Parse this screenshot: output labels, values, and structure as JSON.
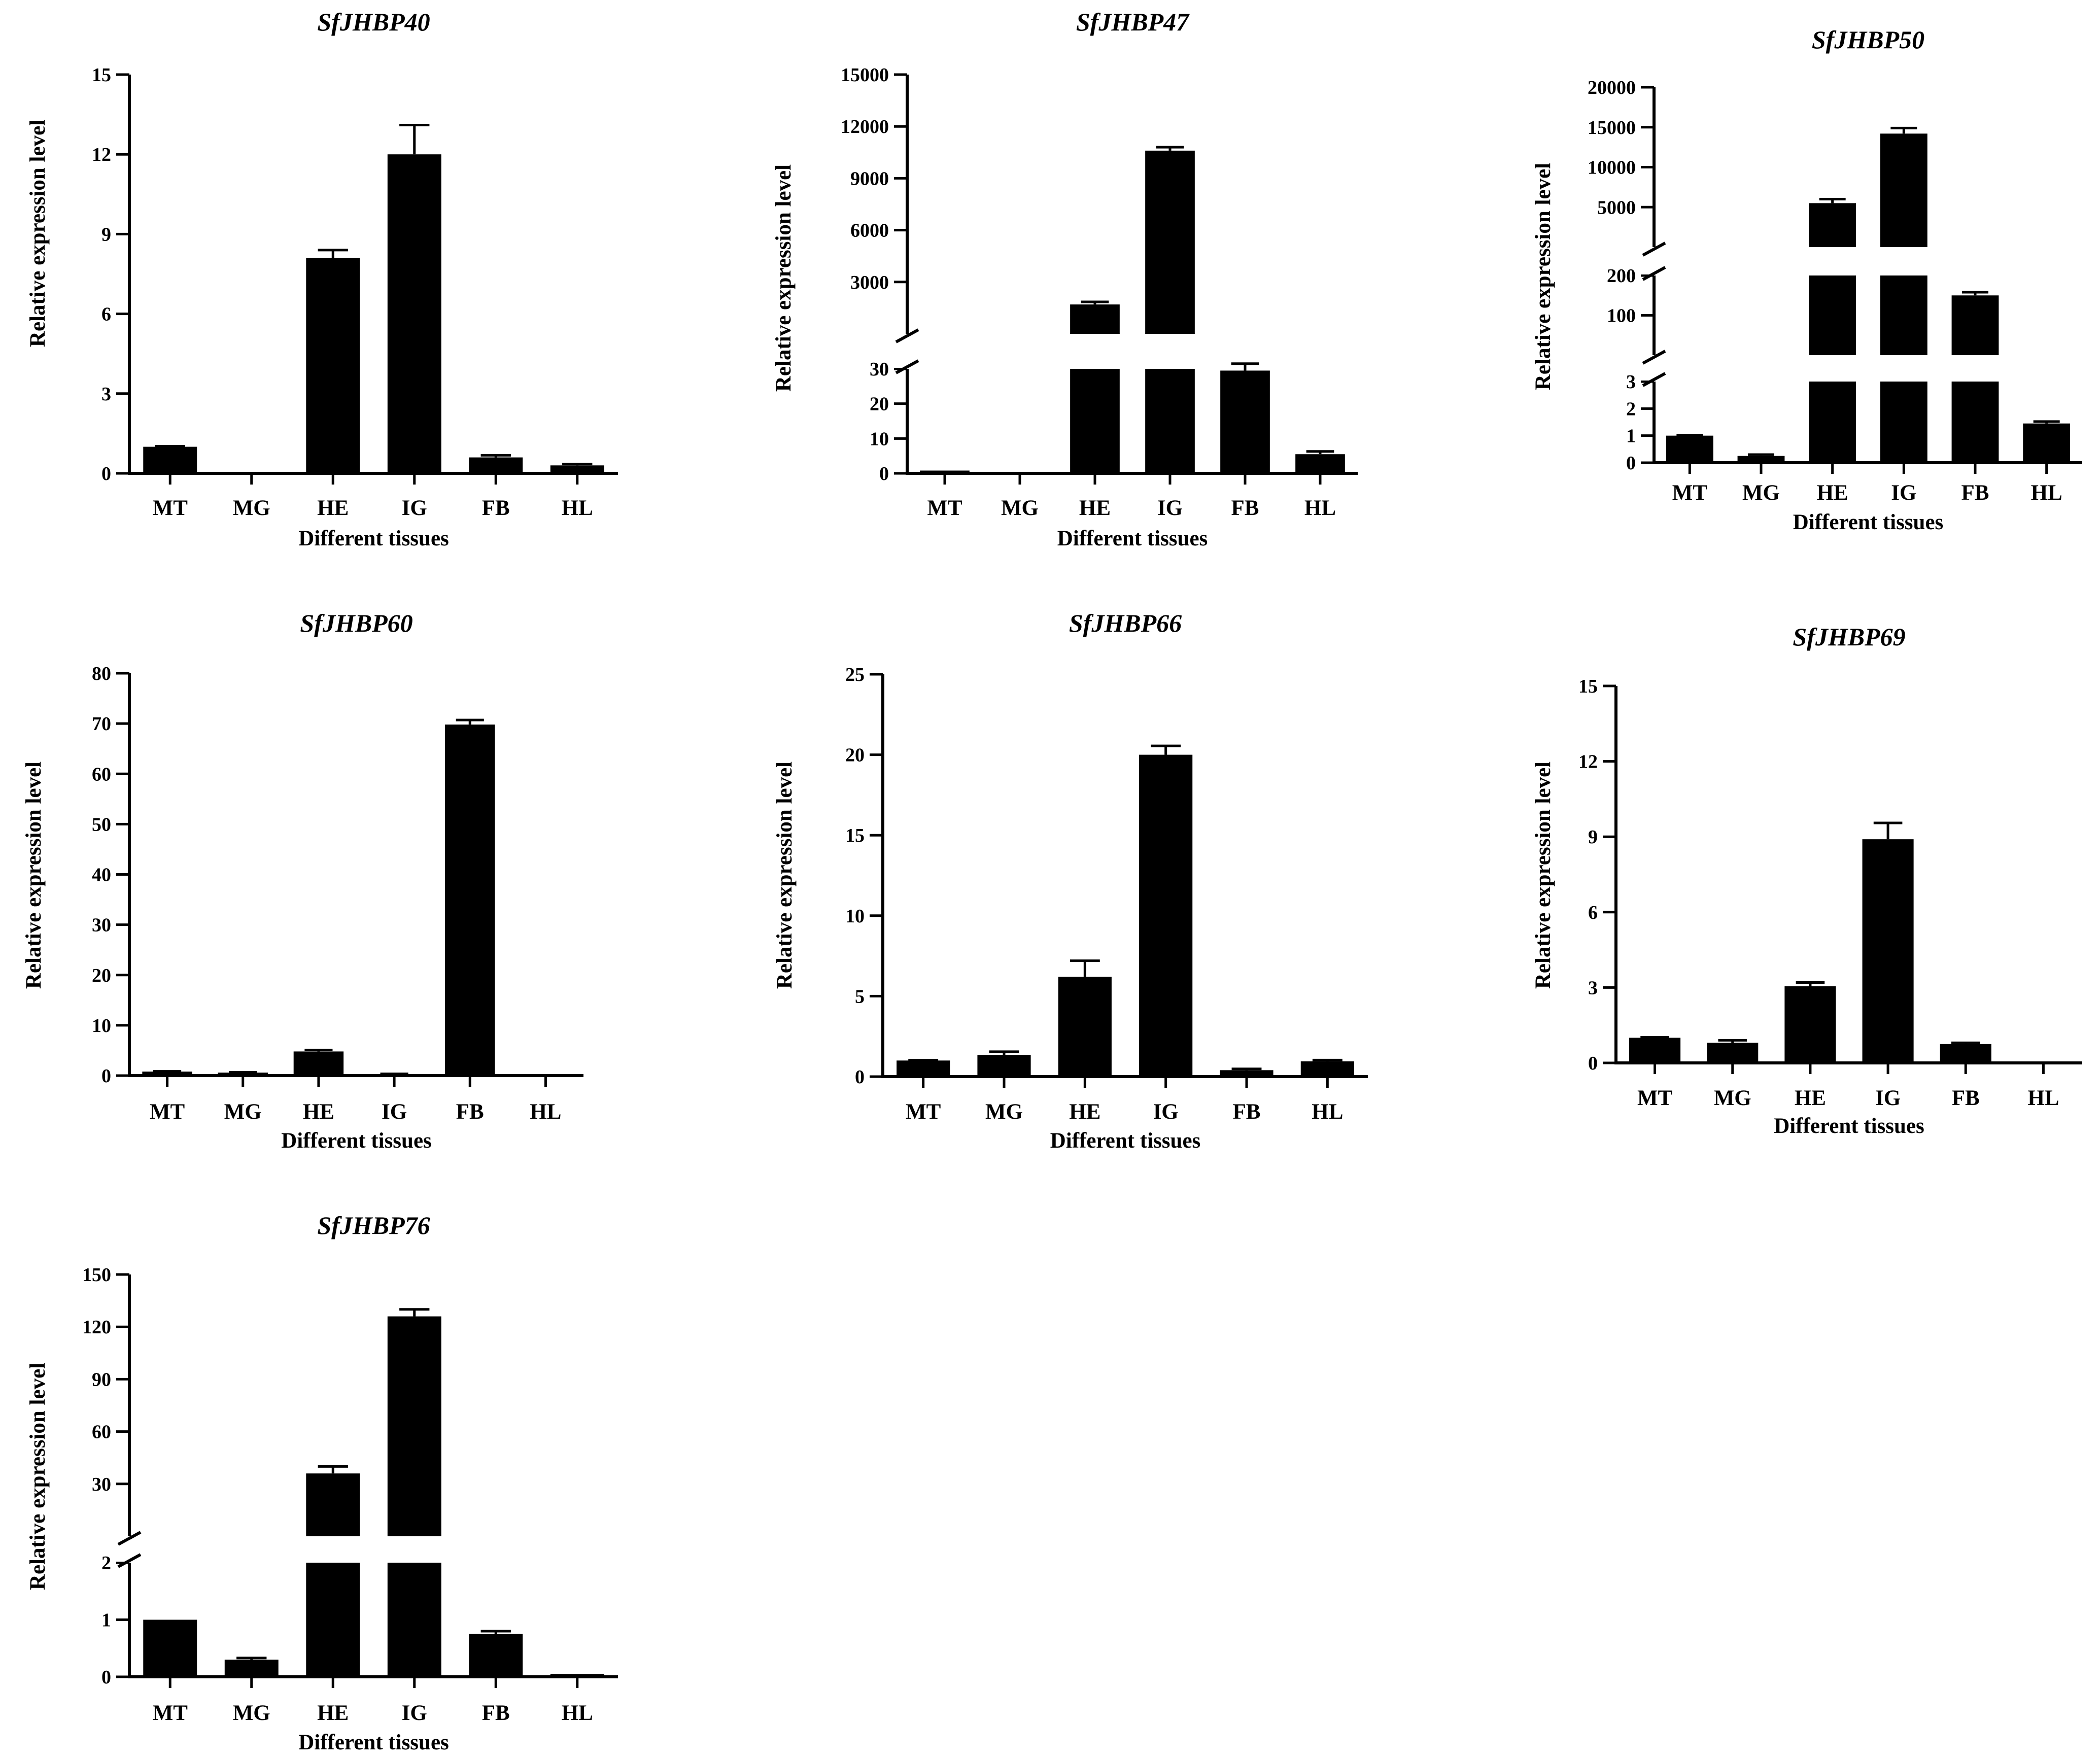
{
  "colors": {
    "bar": "#000000",
    "axis": "#000000",
    "background": "#ffffff"
  },
  "chart_data": [
    {
      "type": "bar",
      "title": "SfJHBP40",
      "xlabel": "Different tissues",
      "ylabel": "Relative expression level",
      "categories": [
        "MT",
        "MG",
        "HE",
        "IG",
        "FB",
        "HL"
      ],
      "values": [
        1.0,
        0.02,
        8.1,
        12.0,
        0.6,
        0.3
      ],
      "errors": [
        0.02,
        0.0,
        0.3,
        1.1,
        0.08,
        0.05
      ],
      "y_segments": [
        {
          "range": [
            0,
            15
          ],
          "ticks": [
            "0",
            "3",
            "6",
            "9",
            "12",
            "15"
          ]
        }
      ]
    },
    {
      "type": "bar",
      "title": "SfJHBP47",
      "xlabel": "Different tissues",
      "ylabel": "Relative expression level",
      "categories": [
        "MT",
        "MG",
        "HE",
        "IG",
        "FB",
        "HL"
      ],
      "values": [
        0.8,
        0.1,
        1700,
        10600,
        29.5,
        5.5
      ],
      "errors": [
        0.0,
        0.0,
        150,
        200,
        2.0,
        0.8
      ],
      "y_segments": [
        {
          "range": [
            0,
            30
          ],
          "ticks": [
            "0",
            "10",
            "20",
            "30"
          ]
        },
        {
          "range": [
            0,
            15000
          ],
          "ticks": [
            "3000",
            "6000",
            "9000",
            "12000",
            "15000"
          ]
        }
      ]
    },
    {
      "type": "bar",
      "title": "SfJHBP50",
      "xlabel": "Different tissues",
      "ylabel": "Relative expression level",
      "categories": [
        "MT",
        "MG",
        "HE",
        "IG",
        "FB",
        "HL"
      ],
      "values": [
        1.0,
        0.25,
        5500,
        14200,
        150,
        1.45
      ],
      "errors": [
        0.02,
        0.05,
        500,
        700,
        8,
        0.07
      ],
      "y_segments": [
        {
          "range": [
            0,
            3
          ],
          "ticks": [
            "0",
            "1",
            "2",
            "3"
          ]
        },
        {
          "range": [
            0,
            200
          ],
          "ticks": [
            "100",
            "200"
          ]
        },
        {
          "range": [
            0,
            20000
          ],
          "ticks": [
            "5000",
            "10000",
            "15000",
            "20000"
          ]
        }
      ]
    },
    {
      "type": "bar",
      "title": "SfJHBP60",
      "xlabel": "Different tissues",
      "ylabel": "Relative expression level",
      "categories": [
        "MT",
        "MG",
        "HE",
        "IG",
        "FB",
        "HL"
      ],
      "values": [
        0.8,
        0.6,
        4.8,
        0.3,
        69.8,
        0.1
      ],
      "errors": [
        0.05,
        0.05,
        0.3,
        0.05,
        0.9,
        0.0
      ],
      "y_segments": [
        {
          "range": [
            0,
            80
          ],
          "ticks": [
            "0",
            "10",
            "20",
            "30",
            "40",
            "50",
            "60",
            "70",
            "80"
          ]
        }
      ]
    },
    {
      "type": "bar",
      "title": "SfJHBP66",
      "xlabel": "Different tissues",
      "ylabel": "Relative expression level",
      "categories": [
        "MT",
        "MG",
        "HE",
        "IG",
        "FB",
        "HL"
      ],
      "values": [
        1.0,
        1.35,
        6.2,
        20.0,
        0.4,
        0.95
      ],
      "errors": [
        0.02,
        0.2,
        1.0,
        0.55,
        0.08,
        0.08
      ],
      "y_segments": [
        {
          "range": [
            0,
            25
          ],
          "ticks": [
            "0",
            "5",
            "10",
            "15",
            "20",
            "25"
          ]
        }
      ]
    },
    {
      "type": "bar",
      "title": "SfJHBP69",
      "xlabel": "Different tissues",
      "ylabel": "Relative expression level",
      "categories": [
        "MT",
        "MG",
        "HE",
        "IG",
        "FB",
        "HL"
      ],
      "values": [
        1.0,
        0.8,
        3.05,
        8.9,
        0.75,
        0.05
      ],
      "errors": [
        0.02,
        0.1,
        0.15,
        0.65,
        0.05,
        0.0
      ],
      "y_segments": [
        {
          "range": [
            0,
            15
          ],
          "ticks": [
            "0",
            "3",
            "6",
            "9",
            "12",
            "15"
          ]
        }
      ]
    },
    {
      "type": "bar",
      "title": "SfJHBP76",
      "xlabel": "Different tissues",
      "ylabel": "Relative expression level",
      "categories": [
        "MT",
        "MG",
        "HE",
        "IG",
        "FB",
        "HL"
      ],
      "values": [
        1.0,
        0.3,
        36,
        126,
        0.75,
        0.05
      ],
      "errors": [
        0.0,
        0.03,
        4,
        4,
        0.05,
        0.0
      ],
      "y_segments": [
        {
          "range": [
            0,
            2
          ],
          "ticks": [
            "0",
            "1",
            "2"
          ]
        },
        {
          "range": [
            0,
            150
          ],
          "ticks": [
            "30",
            "60",
            "90",
            "120",
            "150"
          ]
        }
      ]
    }
  ]
}
